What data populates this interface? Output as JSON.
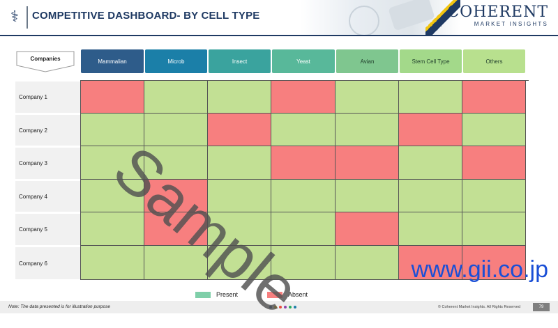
{
  "header": {
    "title": "COMPETITIVE DASHBOARD- BY CELL TYPE",
    "brand_main": "COHERENT",
    "brand_sub": "MARKET INSIGHTS",
    "logo_icon": "caduceus-icon"
  },
  "table": {
    "corner_label": "Companies",
    "columns": [
      {
        "label": "Mammalian",
        "bg": "#2e5c8a",
        "fg": "#ffffff"
      },
      {
        "label": "Microb",
        "bg": "#1b7fa8",
        "fg": "#ffffff"
      },
      {
        "label": "Insect",
        "bg": "#3aa39e",
        "fg": "#ffffff"
      },
      {
        "label": "Yeast",
        "bg": "#58b89a",
        "fg": "#ffffff"
      },
      {
        "label": "Avian",
        "bg": "#7fc68f",
        "fg": "#1f3d2b"
      },
      {
        "label": "Stem Cell Type",
        "bg": "#a3d98a",
        "fg": "#1f3d2b"
      },
      {
        "label": "Others",
        "bg": "#b8e08e",
        "fg": "#1f3d2b"
      }
    ],
    "rows": [
      {
        "label": "Company 1",
        "cells": [
          "absent",
          "present",
          "present",
          "absent",
          "present",
          "present",
          "absent"
        ]
      },
      {
        "label": "Company 2",
        "cells": [
          "present",
          "present",
          "absent",
          "present",
          "present",
          "absent",
          "present"
        ]
      },
      {
        "label": "Company 3",
        "cells": [
          "present",
          "present",
          "present",
          "absent",
          "absent",
          "present",
          "absent"
        ]
      },
      {
        "label": "Company 4",
        "cells": [
          "present",
          "absent",
          "present",
          "present",
          "present",
          "present",
          "present"
        ]
      },
      {
        "label": "Company 5",
        "cells": [
          "present",
          "absent",
          "present",
          "present",
          "absent",
          "present",
          "present"
        ]
      },
      {
        "label": "Company 6",
        "cells": [
          "present",
          "present",
          "present",
          "present",
          "present",
          "absent",
          "absent"
        ]
      }
    ],
    "colors": {
      "present": "#c2e094",
      "absent": "#f77f7f"
    }
  },
  "legend": {
    "present_label": "Present",
    "present_color": "#7fcfa9",
    "absent_label": "Absent",
    "absent_color": "#f77f7f"
  },
  "footer": {
    "note": "Note: The data presented is for illustration purpose",
    "copyright": "© Coherent Market Insights. All Rights Reserved",
    "page_number": "79",
    "dot_colors": [
      "#2e5c8a",
      "#f1c40f",
      "#e74c3c",
      "#8e44ad",
      "#27ae60",
      "#1b7fa8"
    ]
  },
  "watermark": "Sample",
  "overlay_url": "www.gii.co.jp"
}
